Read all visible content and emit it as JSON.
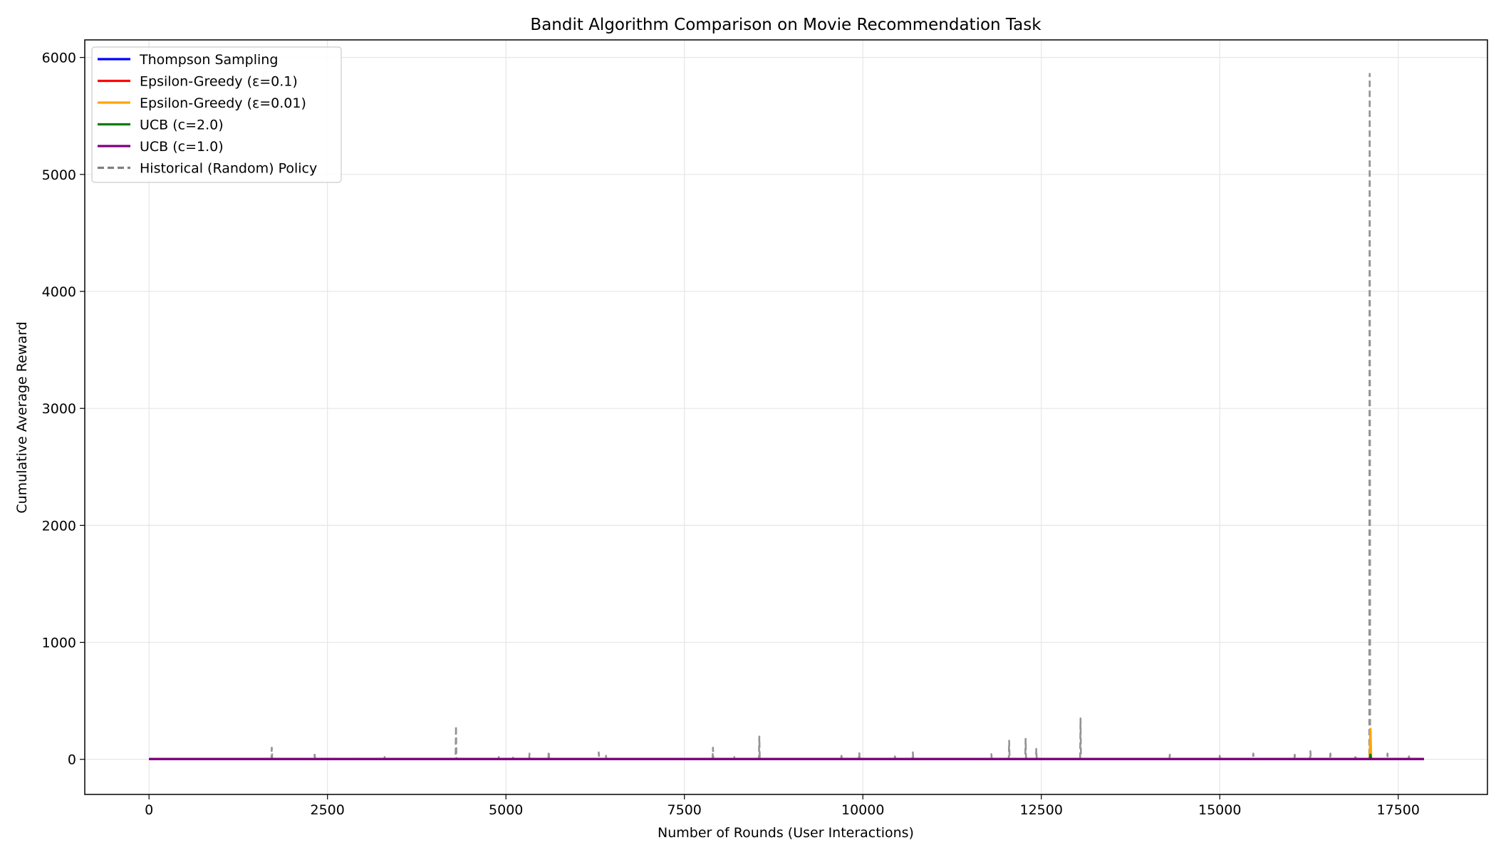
{
  "chart_data": {
    "type": "line",
    "title": "Bandit Algorithm Comparison on Movie Recommendation Task",
    "xlabel": "Number of Rounds (User Interactions)",
    "ylabel": "Cumulative Average Reward",
    "xlim": [
      -900,
      18750
    ],
    "ylim": [
      -300,
      6150
    ],
    "xticks": [
      0,
      2500,
      5000,
      7500,
      10000,
      12500,
      15000,
      17500
    ],
    "yticks": [
      0,
      1000,
      2000,
      3000,
      4000,
      5000,
      6000
    ],
    "grid": true,
    "legend_position": "top-left",
    "series": [
      {
        "name": "Thompson Sampling",
        "color": "#0000ff",
        "style": "solid",
        "points": [
          [
            0,
            2
          ],
          [
            17100,
            2
          ],
          [
            17110,
            30
          ],
          [
            17120,
            2
          ],
          [
            17860,
            2
          ]
        ]
      },
      {
        "name": "Epsilon-Greedy (ε=0.1)",
        "color": "#ff0000",
        "style": "solid",
        "points": [
          [
            0,
            2
          ],
          [
            17100,
            2
          ],
          [
            17110,
            60
          ],
          [
            17120,
            2
          ],
          [
            17860,
            2
          ]
        ]
      },
      {
        "name": "Epsilon-Greedy (ε=0.01)",
        "color": "#ffa500",
        "style": "solid",
        "points": [
          [
            0,
            2
          ],
          [
            17100,
            2
          ],
          [
            17110,
            260
          ],
          [
            17120,
            2
          ],
          [
            17860,
            2
          ]
        ]
      },
      {
        "name": "UCB (c=2.0)",
        "color": "#008000",
        "style": "solid",
        "points": [
          [
            0,
            2
          ],
          [
            17100,
            2
          ],
          [
            17110,
            40
          ],
          [
            17120,
            2
          ],
          [
            17860,
            2
          ]
        ]
      },
      {
        "name": "UCB (c=1.0)",
        "color": "#800080",
        "style": "solid",
        "points": [
          [
            0,
            2
          ],
          [
            17860,
            2
          ]
        ]
      },
      {
        "name": "Historical (Random) Policy",
        "color": "#808080",
        "style": "dashed",
        "spikes": [
          [
            1720,
            100
          ],
          [
            2320,
            40
          ],
          [
            2870,
            25
          ],
          [
            3300,
            20
          ],
          [
            4300,
            285
          ],
          [
            4900,
            20
          ],
          [
            5100,
            15
          ],
          [
            5330,
            50
          ],
          [
            5600,
            70
          ],
          [
            6300,
            60
          ],
          [
            6400,
            40
          ],
          [
            7900,
            100
          ],
          [
            8200,
            20
          ],
          [
            8550,
            195
          ],
          [
            9700,
            30
          ],
          [
            9950,
            60
          ],
          [
            10450,
            25
          ],
          [
            10700,
            60
          ],
          [
            11800,
            45
          ],
          [
            12050,
            160
          ],
          [
            12280,
            175
          ],
          [
            12430,
            90
          ],
          [
            13050,
            350
          ],
          [
            14300,
            40
          ],
          [
            15000,
            30
          ],
          [
            15470,
            50
          ],
          [
            16050,
            40
          ],
          [
            16270,
            70
          ],
          [
            16550,
            50
          ],
          [
            16900,
            40
          ],
          [
            17100,
            5860
          ],
          [
            17350,
            50
          ],
          [
            17650,
            25
          ]
        ]
      }
    ]
  }
}
